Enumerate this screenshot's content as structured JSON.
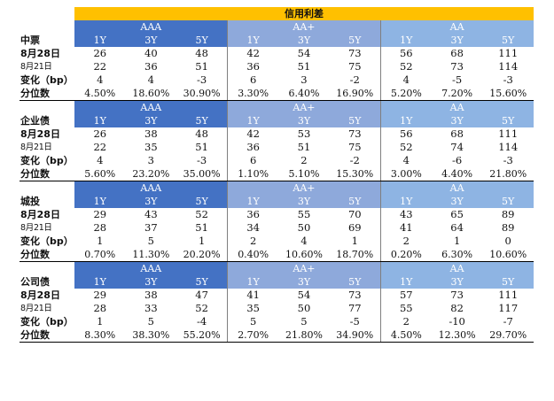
{
  "title": "信用利差",
  "row_labels": {
    "current": "8月28日",
    "previous": "8月21日",
    "change": "变化（bp）",
    "percentile": "分位数"
  },
  "sections": [
    {
      "name": "中票",
      "ratings": [
        "AAA",
        "AA+",
        "AA"
      ],
      "tenors": [
        "1Y",
        "3Y",
        "5Y",
        "1Y",
        "3Y",
        "5Y",
        "1Y",
        "3Y",
        "5Y"
      ],
      "current": [
        "26",
        "40",
        "48",
        "42",
        "54",
        "73",
        "56",
        "68",
        "111"
      ],
      "previous": [
        "22",
        "36",
        "51",
        "36",
        "51",
        "75",
        "52",
        "73",
        "114"
      ],
      "change": [
        "4",
        "4",
        "-3",
        "6",
        "3",
        "-2",
        "4",
        "-5",
        "-3"
      ],
      "percentile": [
        "4.50%",
        "18.60%",
        "30.90%",
        "3.30%",
        "6.40%",
        "16.90%",
        "5.20%",
        "7.20%",
        "15.60%"
      ]
    },
    {
      "name": "企业债",
      "ratings": [
        "AAA",
        "AA+",
        "AA"
      ],
      "tenors": [
        "1Y",
        "3Y",
        "5Y",
        "1Y",
        "3Y",
        "5Y",
        "1Y",
        "3Y",
        "5Y"
      ],
      "current": [
        "26",
        "38",
        "48",
        "42",
        "53",
        "73",
        "56",
        "68",
        "111"
      ],
      "previous": [
        "22",
        "35",
        "51",
        "36",
        "51",
        "75",
        "52",
        "74",
        "114"
      ],
      "change": [
        "4",
        "3",
        "-3",
        "6",
        "2",
        "-2",
        "4",
        "-6",
        "-3"
      ],
      "percentile": [
        "5.60%",
        "23.20%",
        "35.00%",
        "1.10%",
        "5.10%",
        "15.30%",
        "3.00%",
        "4.40%",
        "21.80%"
      ]
    },
    {
      "name": "城投",
      "ratings": [
        "AAA",
        "AA+",
        "AA"
      ],
      "tenors": [
        "1Y",
        "3Y",
        "5Y",
        "1Y",
        "3Y",
        "5Y",
        "1Y",
        "3Y",
        "5Y"
      ],
      "current": [
        "29",
        "43",
        "52",
        "36",
        "55",
        "70",
        "43",
        "65",
        "89"
      ],
      "previous": [
        "28",
        "37",
        "51",
        "34",
        "50",
        "69",
        "41",
        "64",
        "89"
      ],
      "change": [
        "1",
        "5",
        "1",
        "2",
        "4",
        "1",
        "2",
        "1",
        "0"
      ],
      "percentile": [
        "0.70%",
        "11.30%",
        "20.20%",
        "0.40%",
        "10.60%",
        "18.70%",
        "0.20%",
        "6.30%",
        "10.60%"
      ]
    },
    {
      "name": "公司债",
      "ratings": [
        "AAA",
        "AA+",
        "AA"
      ],
      "tenors": [
        "1Y",
        "3Y",
        "5Y",
        "1Y",
        "3Y",
        "5Y",
        "1Y",
        "3Y",
        "5Y"
      ],
      "current": [
        "29",
        "38",
        "47",
        "41",
        "54",
        "73",
        "57",
        "73",
        "111"
      ],
      "previous": [
        "28",
        "33",
        "52",
        "35",
        "50",
        "77",
        "55",
        "82",
        "117"
      ],
      "change": [
        "1",
        "5",
        "-4",
        "5",
        "5",
        "-5",
        "2",
        "-10",
        "-7"
      ],
      "percentile": [
        "8.30%",
        "38.30%",
        "55.20%",
        "2.70%",
        "21.80%",
        "34.90%",
        "4.50%",
        "12.30%",
        "29.70%"
      ]
    }
  ]
}
